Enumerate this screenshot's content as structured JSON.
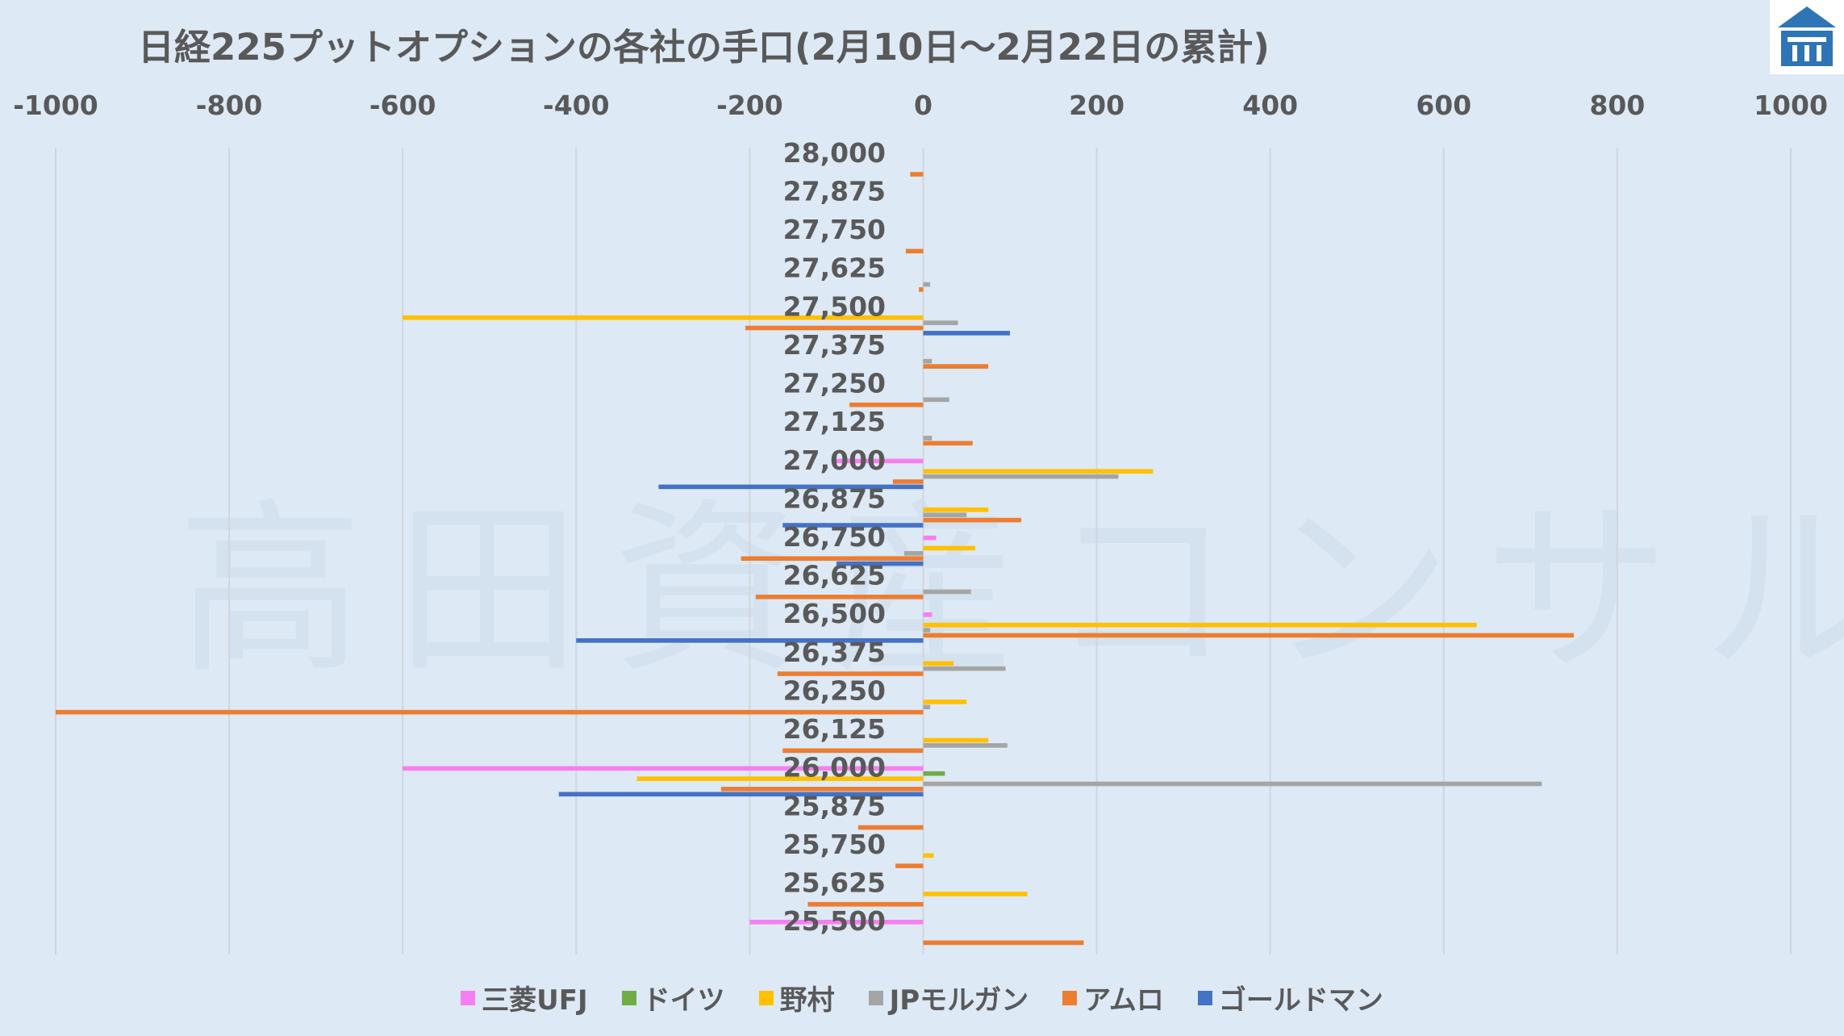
{
  "chart_data": {
    "type": "bar",
    "orientation": "horizontal",
    "title": "日経225プットオプションの各社の手口(2月10日～2月22日の累計)",
    "xlim": [
      -1000,
      1000
    ],
    "x_ticks": [
      "-1000",
      "-800",
      "-600",
      "-400",
      "-200",
      "0",
      "200",
      "400",
      "600",
      "800",
      "1000"
    ],
    "grid": true,
    "legend_position": "bottom",
    "categories": [
      "28,000",
      "27,875",
      "27,750",
      "27,625",
      "27,500",
      "27,375",
      "27,250",
      "27,125",
      "27,000",
      "26,875",
      "26,750",
      "26,625",
      "26,500",
      "26,375",
      "26,250",
      "26,125",
      "26,000",
      "25,875",
      "25,750",
      "25,625",
      "25,500"
    ],
    "series": [
      {
        "name": "三菱UFJ",
        "color": "#f77ef0",
        "values": [
          0,
          0,
          0,
          0,
          0,
          0,
          0,
          0,
          -100,
          0,
          15,
          0,
          10,
          0,
          0,
          0,
          -600,
          0,
          0,
          0,
          -200
        ]
      },
      {
        "name": "ドイツ",
        "color": "#70ad47",
        "values": [
          0,
          0,
          0,
          0,
          0,
          0,
          0,
          0,
          0,
          0,
          0,
          0,
          0,
          0,
          0,
          0,
          25,
          0,
          0,
          0,
          0
        ]
      },
      {
        "name": "野村",
        "color": "#ffc000",
        "values": [
          0,
          0,
          0,
          0,
          -600,
          0,
          0,
          0,
          265,
          75,
          60,
          0,
          638,
          35,
          50,
          75,
          -330,
          0,
          12,
          120,
          0
        ]
      },
      {
        "name": "JPモルガン",
        "color": "#a5a5a5",
        "values": [
          0,
          0,
          0,
          8,
          40,
          10,
          30,
          10,
          225,
          50,
          -22,
          55,
          8,
          95,
          8,
          97,
          713,
          0,
          0,
          0,
          0
        ]
      },
      {
        "name": "アムロ",
        "color": "#ed7d31",
        "values": [
          -15,
          0,
          -20,
          -5,
          -205,
          75,
          -85,
          57,
          -35,
          113,
          -210,
          -193,
          750,
          -168,
          -1000,
          -162,
          -233,
          -75,
          -32,
          -133,
          185
        ]
      },
      {
        "name": "ゴールドマン",
        "color": "#4472c4",
        "values": [
          0,
          0,
          0,
          0,
          100,
          0,
          0,
          0,
          -305,
          -162,
          -100,
          0,
          -400,
          0,
          0,
          0,
          -420,
          0,
          0,
          0,
          0
        ]
      }
    ]
  },
  "watermark": "高田資産コンサル"
}
